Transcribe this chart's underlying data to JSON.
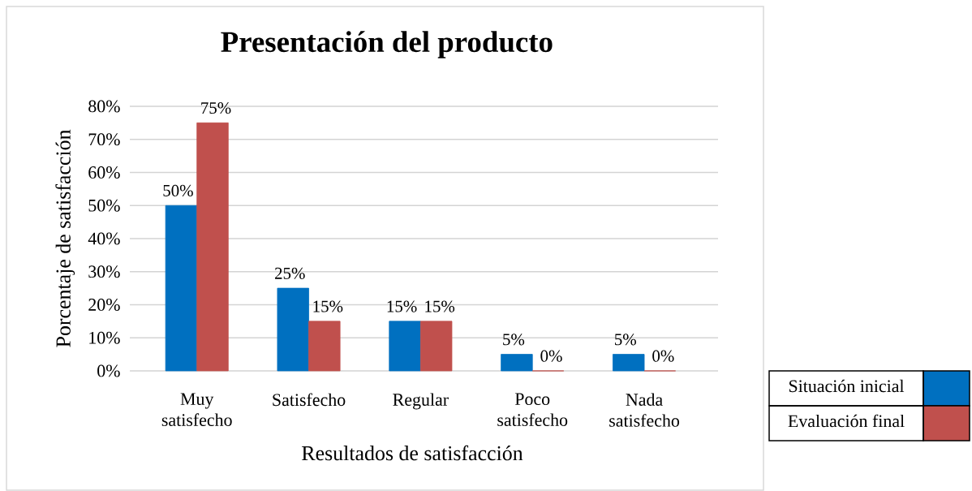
{
  "chart_data": {
    "type": "bar",
    "title": "Presentación del producto",
    "xlabel": "Resultados de satisfacción",
    "ylabel": "Porcentaje de satisfacción",
    "categories": [
      "Muy satisfecho",
      "Satisfecho",
      "Regular",
      "Poco satisfecho",
      "Nada satisfecho"
    ],
    "series": [
      {
        "name": "Situación inicial",
        "color": "#0070c0",
        "values": [
          50,
          25,
          15,
          5,
          5
        ],
        "value_labels": [
          "50%",
          "25%",
          "15%",
          "5%",
          "5%"
        ]
      },
      {
        "name": "Evaluación final",
        "color": "#c0504d",
        "values": [
          75,
          15,
          15,
          0,
          0
        ],
        "value_labels": [
          "75%",
          "15%",
          "15%",
          "0%",
          "0%"
        ]
      }
    ],
    "ylim": [
      0,
      80
    ],
    "yticks": [
      {
        "value": 0,
        "label": "0%"
      },
      {
        "value": 10,
        "label": "10%"
      },
      {
        "value": 20,
        "label": "20%"
      },
      {
        "value": 30,
        "label": "30%"
      },
      {
        "value": 40,
        "label": "40%"
      },
      {
        "value": 50,
        "label": "50%"
      },
      {
        "value": 60,
        "label": "60%"
      },
      {
        "value": 70,
        "label": "70%"
      },
      {
        "value": 80,
        "label": "80%"
      }
    ],
    "grid": "y",
    "legend": "right"
  }
}
